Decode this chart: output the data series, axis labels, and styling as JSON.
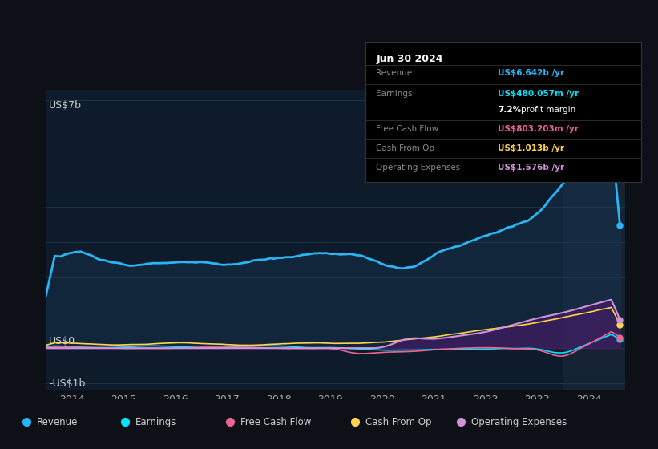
{
  "bg_color": "#0d1117",
  "chart_bg": "#0d1b2a",
  "grid_color": "#1e3a4a",
  "y_label_top": "US$7b",
  "y_label_zero": "US$0",
  "y_label_bottom": "-US$1b",
  "x_ticks": [
    "2014",
    "2015",
    "2016",
    "2017",
    "2018",
    "2019",
    "2020",
    "2021",
    "2022",
    "2023",
    "2024"
  ],
  "tooltip_title": "Jun 30 2024",
  "row_data": [
    {
      "label": "Revenue",
      "value": "US$6.642b /yr",
      "value_color": "#29b6f6"
    },
    {
      "label": "Earnings",
      "value": "US$480.057m /yr",
      "value_color": "#00e5ff"
    },
    {
      "label": "",
      "value": "7.2% profit margin",
      "value_color": "#ffffff",
      "bold_part": "7.2%"
    },
    {
      "label": "Free Cash Flow",
      "value": "US$803.203m /yr",
      "value_color": "#f06292"
    },
    {
      "label": "Cash From Op",
      "value": "US$1.013b /yr",
      "value_color": "#ffd54f"
    },
    {
      "label": "Operating Expenses",
      "value": "US$1.576b /yr",
      "value_color": "#ce93d8"
    }
  ],
  "legend": [
    {
      "label": "Revenue",
      "color": "#29b6f6"
    },
    {
      "label": "Earnings",
      "color": "#00e5ff"
    },
    {
      "label": "Free Cash Flow",
      "color": "#f06292"
    },
    {
      "label": "Cash From Op",
      "color": "#ffd54f"
    },
    {
      "label": "Operating Expenses",
      "color": "#ce93d8"
    }
  ],
  "revenue_color": "#29b6f6",
  "earnings_color": "#00e5ff",
  "fcf_color": "#f06292",
  "cashfromop_color": "#ffd54f",
  "opex_color": "#ce93d8",
  "revenue_fill": "#1a3a5c",
  "opex_fill": "#4a1a6a"
}
